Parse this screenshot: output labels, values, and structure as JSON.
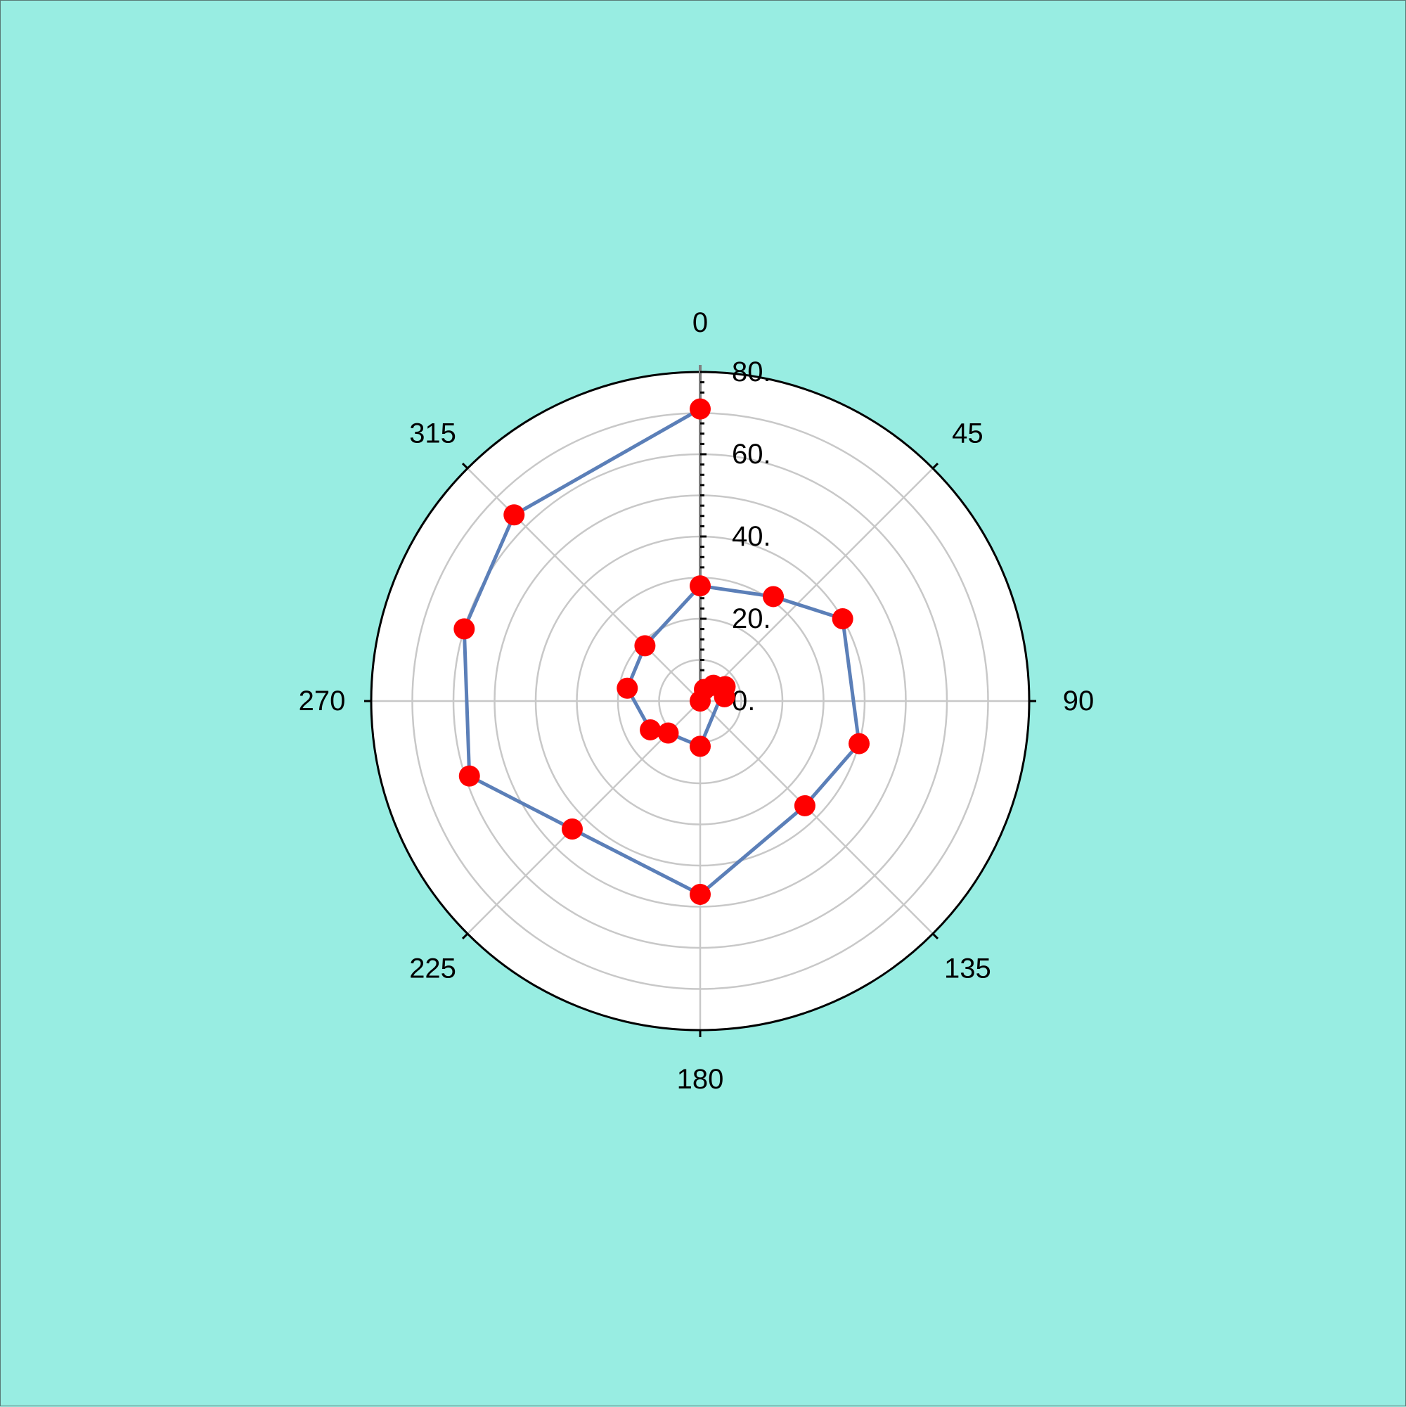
{
  "background_color": "#98ede2",
  "chart_data": {
    "type": "line",
    "projection": "polar",
    "theta_zero": "top",
    "theta_direction": "clockwise",
    "rlim": [
      0,
      80
    ],
    "radial_ticks": [
      0,
      20,
      40,
      60,
      80
    ],
    "radial_tick_labels": [
      "0.",
      "20.",
      "40.",
      "60.",
      "80."
    ],
    "angle_ticks": [
      0,
      45,
      90,
      135,
      180,
      225,
      270,
      315
    ],
    "angle_tick_labels": [
      "0",
      "45",
      "90",
      "135",
      "180",
      "225",
      "270",
      "315"
    ],
    "grid": true,
    "series": [
      {
        "line_color": "#5b7fb8",
        "marker_color": "#ff0000",
        "points": [
          {
            "theta": 0,
            "r": 0
          },
          {
            "theta": 20,
            "r": 3
          },
          {
            "theta": 40,
            "r": 5
          },
          {
            "theta": 80,
            "r": 6
          },
          {
            "theta": 60,
            "r": 7
          },
          {
            "theta": 180,
            "r": 11
          },
          {
            "theta": 225,
            "r": 11
          },
          {
            "theta": 240,
            "r": 14
          },
          {
            "theta": 280,
            "r": 18
          },
          {
            "theta": 315,
            "r": 19
          },
          {
            "theta": 0,
            "r": 28
          },
          {
            "theta": 35,
            "r": 31
          },
          {
            "theta": 60,
            "r": 40
          },
          {
            "theta": 105,
            "r": 40
          },
          {
            "theta": 135,
            "r": 36
          },
          {
            "theta": 180,
            "r": 47
          },
          {
            "theta": 225,
            "r": 44
          },
          {
            "theta": 252,
            "r": 59
          },
          {
            "theta": 287,
            "r": 60
          },
          {
            "theta": 315,
            "r": 64
          },
          {
            "theta": 0,
            "r": 71
          }
        ]
      }
    ]
  }
}
